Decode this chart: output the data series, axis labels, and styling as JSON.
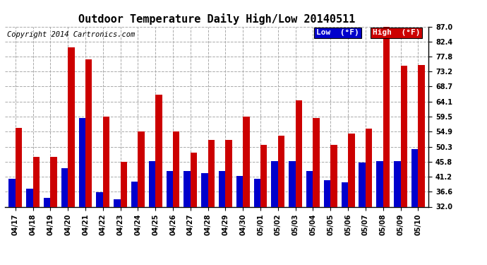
{
  "title": "Outdoor Temperature Daily High/Low 20140511",
  "copyright": "Copyright 2014 Cartronics.com",
  "legend_low": "Low  (°F)",
  "legend_high": "High  (°F)",
  "categories": [
    "04/17",
    "04/18",
    "04/19",
    "04/20",
    "04/21",
    "04/22",
    "04/23",
    "04/24",
    "04/25",
    "04/26",
    "04/27",
    "04/28",
    "04/29",
    "04/30",
    "05/01",
    "05/02",
    "05/03",
    "05/04",
    "05/05",
    "05/06",
    "05/07",
    "05/08",
    "05/09",
    "05/10"
  ],
  "high": [
    56.1,
    47.3,
    47.3,
    80.6,
    77.0,
    59.5,
    45.8,
    54.9,
    66.2,
    54.9,
    48.4,
    52.3,
    52.3,
    59.5,
    50.9,
    53.6,
    64.4,
    59.0,
    50.9,
    54.4,
    55.8,
    87.0,
    75.0,
    75.2
  ],
  "low": [
    40.6,
    37.4,
    34.7,
    43.7,
    59.0,
    36.5,
    34.2,
    39.6,
    46.0,
    42.8,
    42.8,
    42.3,
    42.8,
    41.4,
    40.6,
    46.0,
    46.0,
    43.0,
    40.1,
    39.4,
    45.5,
    46.0,
    46.0,
    49.6
  ],
  "ylim": [
    32.0,
    87.0
  ],
  "yticks": [
    32.0,
    36.6,
    41.2,
    45.8,
    50.3,
    54.9,
    59.5,
    64.1,
    68.7,
    73.2,
    77.8,
    82.4,
    87.0
  ],
  "bar_width": 0.38,
  "low_color": "#0000cc",
  "high_color": "#cc0000",
  "bg_color": "#ffffff",
  "grid_color": "#aaaaaa",
  "title_fontsize": 11,
  "copyright_fontsize": 7.5,
  "tick_fontsize": 7,
  "legend_fontsize": 8
}
